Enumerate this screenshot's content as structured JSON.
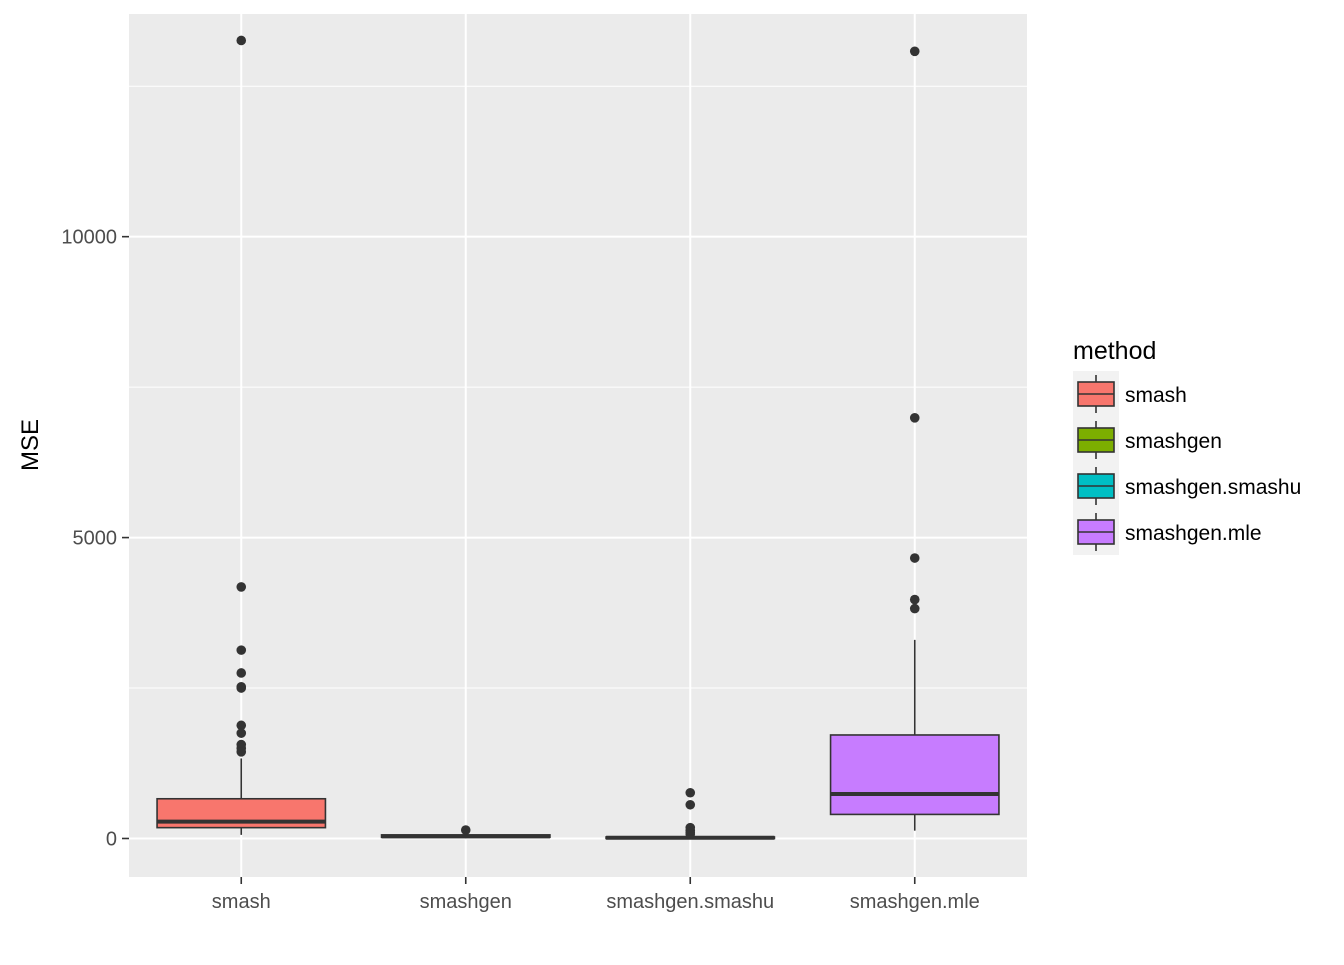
{
  "chart_data": {
    "type": "boxplot",
    "title": "",
    "xlabel": "",
    "ylabel": "MSE",
    "ylim": [
      -640,
      13700
    ],
    "y_ticks": [
      0,
      5000,
      10000
    ],
    "y_tick_labels": [
      "0",
      "5000",
      "10000"
    ],
    "y_minor_ticks": [
      2500,
      7500,
      12500
    ],
    "grid": true,
    "legend": {
      "title": "method",
      "position": "right",
      "entries": [
        "smash",
        "smashgen",
        "smashgen.smashu",
        "smashgen.mle"
      ]
    },
    "categories": [
      "smash",
      "smashgen",
      "smashgen.smashu",
      "smashgen.mle"
    ],
    "series": [
      {
        "name": "smash",
        "color": "#F8766D",
        "whisker_low": 60,
        "q1": 180,
        "median": 280,
        "q3": 660,
        "whisker_high": 1330,
        "outliers": [
          13260,
          4180,
          3130,
          2750,
          2520,
          2500,
          1880,
          1750,
          1560,
          1500,
          1440
        ]
      },
      {
        "name": "smashgen",
        "color": "#7CAE00",
        "whisker_low": 5,
        "q1": 20,
        "median": 35,
        "q3": 60,
        "whisker_high": 95,
        "outliers": [
          140
        ]
      },
      {
        "name": "smashgen.smashu",
        "color": "#00BFC4",
        "whisker_low": 0,
        "q1": 5,
        "median": 12,
        "q3": 25,
        "whisker_high": 45,
        "outliers": [
          760,
          560,
          180,
          130,
          100,
          70
        ]
      },
      {
        "name": "smashgen.mle",
        "color": "#C77CFF",
        "whisker_low": 130,
        "q1": 400,
        "median": 740,
        "q3": 1720,
        "whisker_high": 3300,
        "outliers": [
          13080,
          6990,
          4660,
          3970,
          3820
        ]
      }
    ]
  }
}
